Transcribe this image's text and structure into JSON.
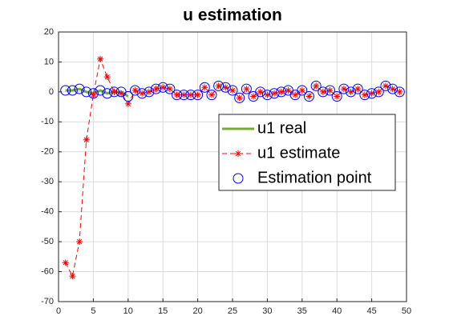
{
  "chart_data": {
    "type": "line",
    "title": "u estimation",
    "xlim": [
      0,
      50
    ],
    "xticks": [
      0,
      5,
      10,
      15,
      20,
      25,
      30,
      35,
      40,
      45,
      50
    ],
    "ylim": [
      -70,
      20
    ],
    "yticks": [
      -70,
      -60,
      -50,
      -40,
      -30,
      -20,
      -10,
      0,
      10,
      20
    ],
    "grid": true,
    "legend": "east",
    "series": [
      {
        "name": "u1 real",
        "color": "#77ac30",
        "style": "solid",
        "x": [
          1,
          2,
          3,
          4,
          5,
          6,
          7,
          8,
          9,
          10
        ],
        "values": [
          0.5,
          0.5,
          1,
          0,
          -0.5,
          0.5,
          -0.5,
          0,
          0,
          -1.5
        ]
      },
      {
        "name": "u1 estimate",
        "color": "#ff0000",
        "style": "dashed",
        "marker": "star",
        "x": [
          1,
          2,
          3,
          4,
          5,
          6,
          7,
          8,
          9,
          10,
          11,
          12,
          13,
          14,
          15,
          16,
          17,
          18,
          19,
          20,
          21,
          22,
          23,
          24,
          25,
          26,
          27,
          28,
          29,
          30,
          31,
          32,
          33,
          34,
          35,
          36,
          37,
          38,
          39,
          40,
          41,
          42,
          43,
          44,
          45,
          46,
          47,
          48,
          49
        ],
        "values": [
          -57,
          -61.5,
          -50,
          -16,
          -1,
          11,
          5,
          0,
          -0.5,
          -4,
          0.5,
          -0.5,
          0,
          1,
          1.5,
          1,
          -1,
          -1,
          -1,
          -1,
          1.5,
          -1,
          2,
          1.5,
          0.5,
          -2,
          1,
          -1.5,
          0,
          -1,
          -0.5,
          0,
          0.5,
          -1,
          0.5,
          -1.5,
          2,
          0,
          0.5,
          -1.5,
          1,
          0,
          1,
          -1,
          -0.5,
          0,
          2,
          1,
          0
        ]
      },
      {
        "name": "Estimation point",
        "color": "#0000ff",
        "style": "none",
        "marker": "circle",
        "x": [
          1,
          2,
          3,
          4,
          5,
          6,
          7,
          8,
          9,
          10,
          11,
          12,
          13,
          14,
          15,
          16,
          17,
          18,
          19,
          20,
          21,
          22,
          23,
          24,
          25,
          26,
          27,
          28,
          29,
          30,
          31,
          32,
          33,
          34,
          35,
          36,
          37,
          38,
          39,
          40,
          41,
          42,
          43,
          44,
          45,
          46,
          47,
          48,
          49
        ],
        "values": [
          0.5,
          0.5,
          1,
          0,
          -0.5,
          0.5,
          -0.5,
          0,
          0,
          -1.5,
          0.5,
          -0.5,
          0,
          1,
          1.5,
          1,
          -1,
          -1,
          -1,
          -1,
          1.5,
          -1,
          2,
          1.5,
          0.5,
          -2,
          1,
          -1.5,
          0,
          -1,
          -0.5,
          0,
          0.5,
          -1,
          0.5,
          -1.5,
          2,
          0,
          0.5,
          -1.5,
          1,
          0,
          1,
          -1,
          -0.5,
          0,
          2,
          1,
          0
        ]
      }
    ]
  }
}
